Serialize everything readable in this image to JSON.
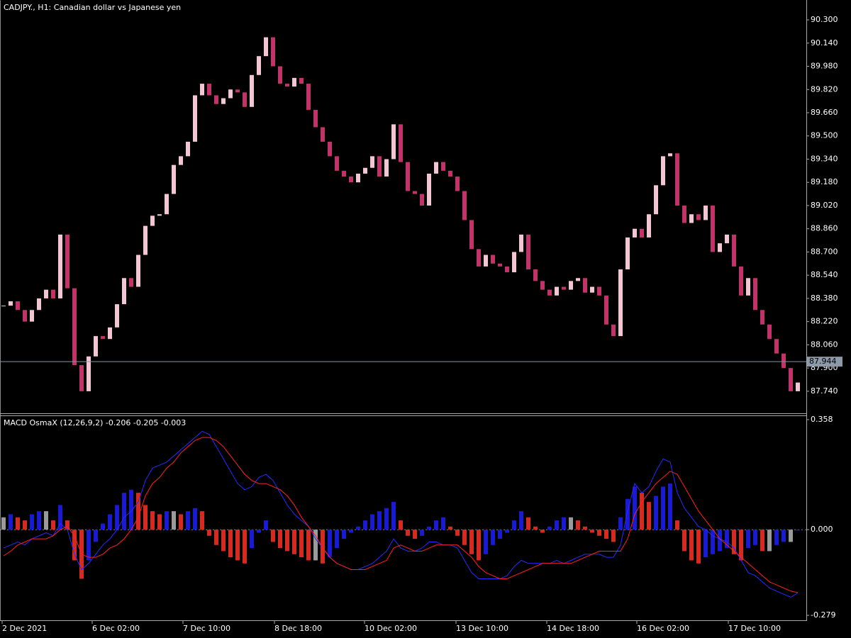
{
  "chart_data": [
    {
      "type": "candlestick",
      "title": "CADJPY., H1:  Canadian dollar vs Japanese yen",
      "close": [
        88.33,
        88.36,
        88.3,
        88.22,
        88.3,
        88.38,
        88.44,
        88.38,
        88.82,
        88.45,
        87.92,
        87.74,
        87.98,
        88.12,
        88.1,
        88.18,
        88.34,
        88.52,
        88.46,
        88.68,
        88.88,
        88.95,
        88.96,
        89.1,
        89.3,
        89.36,
        89.46,
        89.78,
        89.86,
        89.78,
        89.72,
        89.76,
        89.82,
        89.8,
        89.7,
        89.92,
        90.05,
        90.18,
        89.98,
        89.86,
        89.84,
        89.9,
        89.86,
        89.68,
        89.56,
        89.46,
        89.36,
        89.26,
        89.22,
        89.18,
        89.24,
        89.28,
        89.36,
        89.22,
        89.34,
        89.58,
        89.32,
        89.12,
        89.1,
        89.02,
        89.24,
        89.32,
        89.26,
        89.22,
        89.12,
        88.92,
        88.72,
        88.6,
        88.68,
        88.62,
        88.6,
        88.56,
        88.7,
        88.82,
        88.58,
        88.5,
        88.44,
        88.4,
        88.46,
        88.44,
        88.5,
        88.52,
        88.42,
        88.46,
        88.4,
        88.2,
        88.12,
        88.58,
        88.8,
        88.86,
        88.8,
        88.96,
        89.16,
        89.36,
        89.38,
        89.02,
        88.9,
        88.96,
        88.92,
        89.02,
        88.7,
        88.76,
        88.82,
        88.6,
        88.4,
        88.52,
        88.3,
        88.2,
        88.1,
        88.0,
        87.9,
        87.74,
        87.8
      ],
      "bull_color": "#f2c6d2",
      "bear_color": "#c2336a",
      "ylim": [
        87.588,
        90.437
      ],
      "yticks": [
        {
          "value": 87.74,
          "label": "87.740"
        },
        {
          "value": 87.9,
          "label": "87.900"
        },
        {
          "value": 88.06,
          "label": "88.060"
        },
        {
          "value": 88.22,
          "label": "88.220"
        },
        {
          "value": 88.38,
          "label": "88.380"
        },
        {
          "value": 88.54,
          "label": "88.540"
        },
        {
          "value": 88.7,
          "label": "88.700"
        },
        {
          "value": 88.86,
          "label": "88.860"
        },
        {
          "value": 89.02,
          "label": "89.020"
        },
        {
          "value": 89.18,
          "label": "89.180"
        },
        {
          "value": 89.34,
          "label": "89.340"
        },
        {
          "value": 89.5,
          "label": "89.500"
        },
        {
          "value": 89.66,
          "label": "89.660"
        },
        {
          "value": 89.82,
          "label": "89.820"
        },
        {
          "value": 89.98,
          "label": "89.980"
        },
        {
          "value": 90.14,
          "label": "90.140"
        },
        {
          "value": 90.3,
          "label": "90.300"
        }
      ],
      "current_price": {
        "value": 87.944,
        "label": "87.944"
      },
      "xlim": [
        -0.5,
        113.2
      ],
      "xticks": [
        {
          "value": -0.2,
          "label": "2 Dec 2021"
        },
        {
          "value": 12.5,
          "label": "6 Dec 02:00"
        },
        {
          "value": 25.3,
          "label": "7 Dec 10:00"
        },
        {
          "value": 38.2,
          "label": "8 Dec 18:00"
        },
        {
          "value": 50.9,
          "label": "10 Dec 02:00"
        },
        {
          "value": 63.8,
          "label": "13 Dec 10:00"
        },
        {
          "value": 76.6,
          "label": "14 Dec 18:00"
        },
        {
          "value": 89.3,
          "label": "16 Dec 02:00"
        },
        {
          "value": 102.2,
          "label": "17 Dec 10:00"
        }
      ]
    },
    {
      "type": "macd",
      "title": "MACD OsmaX (12,26,9,2) -0.206 -0.205 -0.003",
      "histogram": [
        0.04,
        0.05,
        0.04,
        0.03,
        0.05,
        0.06,
        0.06,
        0.03,
        0.08,
        0.03,
        -0.1,
        -0.16,
        -0.1,
        -0.04,
        0.02,
        0.05,
        0.08,
        0.12,
        0.13,
        0.12,
        0.08,
        0.06,
        0.05,
        0.06,
        0.06,
        0.05,
        0.06,
        0.07,
        0.06,
        -0.02,
        -0.05,
        -0.07,
        -0.09,
        -0.1,
        -0.11,
        -0.06,
        -0.01,
        0.03,
        -0.04,
        -0.06,
        -0.07,
        -0.08,
        -0.09,
        -0.1,
        -0.1,
        -0.11,
        -0.09,
        -0.06,
        -0.03,
        -0.01,
        0.01,
        0.03,
        0.05,
        0.06,
        0.07,
        0.09,
        0.03,
        -0.02,
        -0.03,
        -0.02,
        0.01,
        0.03,
        0.04,
        0.01,
        -0.02,
        -0.05,
        -0.08,
        -0.1,
        -0.08,
        -0.05,
        -0.03,
        -0.01,
        0.03,
        0.06,
        0.04,
        0.01,
        -0.01,
        0.01,
        0.03,
        0.04,
        0.04,
        0.03,
        0.01,
        -0.01,
        -0.02,
        -0.03,
        -0.04,
        0.04,
        0.1,
        0.14,
        0.12,
        0.09,
        0.11,
        0.14,
        0.15,
        0.03,
        -0.07,
        -0.1,
        -0.11,
        -0.09,
        -0.08,
        -0.07,
        -0.06,
        -0.08,
        -0.1,
        -0.06,
        -0.05,
        -0.07,
        -0.07,
        -0.05,
        -0.04,
        -0.04,
        -0.003
      ],
      "hist_up_color": "#1a1ad0",
      "hist_down_color": "#d42a20",
      "hist_flat_color": "#9a9a9a",
      "macd_line": {
        "color": "#2a2aff",
        "values": [
          -0.06,
          -0.05,
          -0.04,
          -0.05,
          -0.03,
          -0.02,
          -0.01,
          -0.02,
          0.02,
          0.0,
          -0.08,
          -0.13,
          -0.11,
          -0.08,
          -0.05,
          -0.03,
          0.0,
          0.04,
          0.06,
          0.09,
          0.16,
          0.2,
          0.21,
          0.22,
          0.24,
          0.26,
          0.28,
          0.3,
          0.32,
          0.31,
          0.27,
          0.23,
          0.19,
          0.15,
          0.13,
          0.14,
          0.17,
          0.18,
          0.16,
          0.12,
          0.08,
          0.05,
          0.03,
          0.01,
          -0.03,
          -0.06,
          -0.09,
          -0.11,
          -0.12,
          -0.13,
          -0.13,
          -0.12,
          -0.11,
          -0.09,
          -0.07,
          -0.03,
          -0.06,
          -0.07,
          -0.07,
          -0.06,
          -0.04,
          -0.04,
          -0.05,
          -0.05,
          -0.06,
          -0.1,
          -0.14,
          -0.16,
          -0.16,
          -0.16,
          -0.16,
          -0.15,
          -0.12,
          -0.1,
          -0.11,
          -0.11,
          -0.11,
          -0.11,
          -0.1,
          -0.11,
          -0.1,
          -0.09,
          -0.08,
          -0.08,
          -0.08,
          -0.09,
          -0.09,
          -0.05,
          0.06,
          0.15,
          0.12,
          0.14,
          0.19,
          0.23,
          0.22,
          0.12,
          0.07,
          0.04,
          0.01,
          0.0,
          -0.02,
          -0.03,
          -0.04,
          -0.06,
          -0.1,
          -0.14,
          -0.15,
          -0.17,
          -0.19,
          -0.2,
          -0.21,
          -0.22,
          -0.206
        ]
      },
      "signal_line": {
        "color": "#ff2020",
        "values": [
          -0.085,
          -0.07,
          -0.05,
          -0.04,
          -0.03,
          -0.03,
          -0.03,
          -0.02,
          0.0,
          0.01,
          -0.02,
          -0.08,
          -0.09,
          -0.09,
          -0.08,
          -0.06,
          -0.05,
          -0.03,
          0.0,
          0.04,
          0.11,
          0.15,
          0.17,
          0.2,
          0.22,
          0.25,
          0.27,
          0.29,
          0.3,
          0.3,
          0.29,
          0.27,
          0.24,
          0.21,
          0.18,
          0.16,
          0.15,
          0.15,
          0.14,
          0.13,
          0.11,
          0.08,
          0.04,
          0.01,
          -0.02,
          -0.06,
          -0.09,
          -0.11,
          -0.12,
          -0.13,
          -0.13,
          -0.13,
          -0.12,
          -0.11,
          -0.1,
          -0.06,
          -0.05,
          -0.06,
          -0.07,
          -0.07,
          -0.06,
          -0.05,
          -0.05,
          -0.05,
          -0.05,
          -0.07,
          -0.09,
          -0.12,
          -0.14,
          -0.15,
          -0.16,
          -0.16,
          -0.15,
          -0.14,
          -0.13,
          -0.12,
          -0.11,
          -0.11,
          -0.11,
          -0.11,
          -0.11,
          -0.1,
          -0.09,
          -0.08,
          -0.07,
          -0.07,
          -0.07,
          -0.07,
          -0.03,
          0.05,
          0.09,
          0.12,
          0.15,
          0.17,
          0.19,
          0.18,
          0.14,
          0.1,
          0.06,
          0.03,
          0.0,
          -0.03,
          -0.05,
          -0.07,
          -0.09,
          -0.11,
          -0.13,
          -0.15,
          -0.17,
          -0.18,
          -0.19,
          -0.2,
          -0.205
        ]
      },
      "ylim": [
        -0.295,
        0.374
      ],
      "yticks": [
        0.358,
        {
          "value": 0,
          "label": "0.000"
        },
        -0.279
      ]
    }
  ]
}
